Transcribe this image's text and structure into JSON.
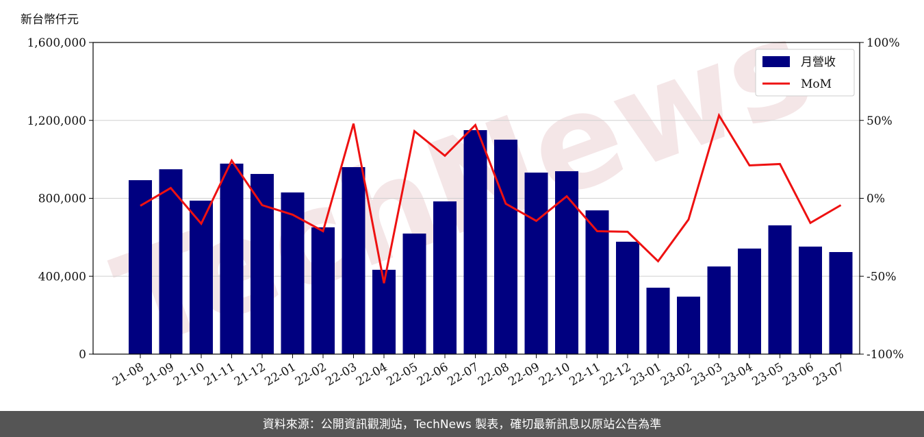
{
  "chart_data": {
    "type": "bar_line",
    "y_label": "新台幣仟元",
    "watermark": "TechNews",
    "footer": "資料來源：公開資訊觀測站，TechNews 製表，確切最新訊息以原站公告為準",
    "categories": [
      "21-08",
      "21-09",
      "21-10",
      "21-11",
      "21-12",
      "22-01",
      "22-02",
      "22-03",
      "22-04",
      "22-05",
      "22-06",
      "22-07",
      "22-08",
      "22-09",
      "22-10",
      "22-11",
      "22-12",
      "23-01",
      "23-02",
      "23-03",
      "23-04",
      "23-05",
      "23-06",
      "23-07"
    ],
    "series": [
      {
        "name": "月營收",
        "color": "#000080",
        "type": "bar",
        "values": [
          893000,
          949000,
          788000,
          978000,
          925000,
          830000,
          651000,
          960000,
          433000,
          619000,
          784000,
          1150000,
          1101000,
          932000,
          939000,
          738000,
          577000,
          341000,
          295000,
          450000,
          542000,
          661000,
          552000,
          524000
        ]
      },
      {
        "name": "MoM",
        "color": "#ee1111",
        "type": "line",
        "axis": "y2",
        "values": [
          -4.8,
          6.6,
          -16.3,
          24.2,
          -4.4,
          -10.5,
          -21.1,
          47.9,
          -54.5,
          43.1,
          27.3,
          47.0,
          -3.5,
          -14.5,
          1.3,
          -21.1,
          -21.5,
          -40.4,
          -13.6,
          53.2,
          21.1,
          22.0,
          -15.8,
          -4.4
        ]
      }
    ],
    "ylim": [
      0,
      1600000
    ],
    "yticks": [
      {
        "value": 0,
        "label": "0"
      },
      {
        "value": 400000,
        "label": "400,000"
      },
      {
        "value": 800000,
        "label": "800,000"
      },
      {
        "value": 1200000,
        "label": "1,200,000"
      },
      {
        "value": 1600000,
        "label": "1,600,000"
      }
    ],
    "y2lim": [
      -100,
      100
    ],
    "y2ticks": [
      {
        "value": -100,
        "label": "-100%"
      },
      {
        "value": -50,
        "label": "-50%"
      },
      {
        "value": 0,
        "label": "0%"
      },
      {
        "value": 50,
        "label": "50%"
      },
      {
        "value": 100,
        "label": "100%"
      }
    ],
    "grid": true,
    "legend": "upper right"
  }
}
